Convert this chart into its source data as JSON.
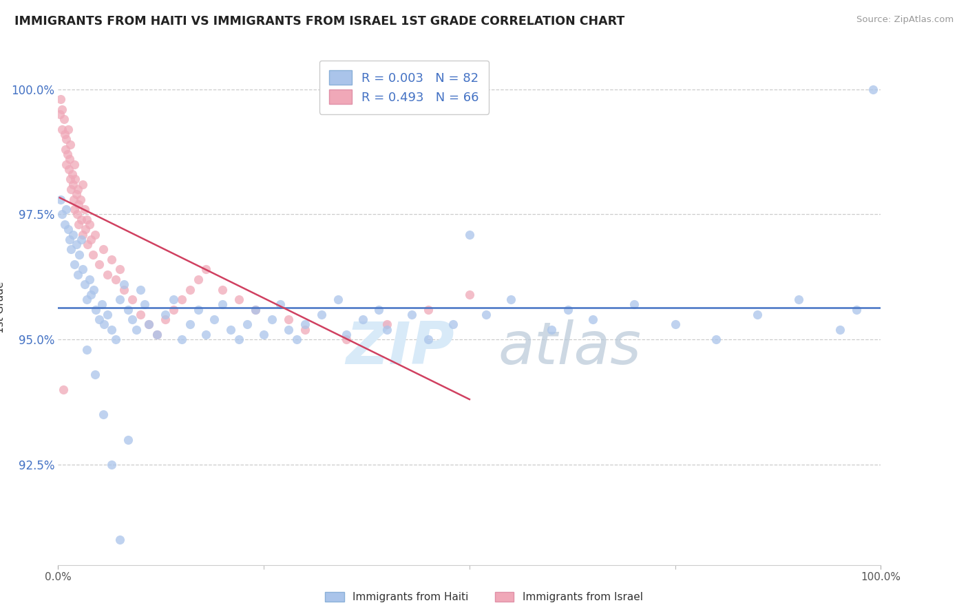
{
  "title": "IMMIGRANTS FROM HAITI VS IMMIGRANTS FROM ISRAEL 1ST GRADE CORRELATION CHART",
  "source": "Source: ZipAtlas.com",
  "ylabel": "1st Grade",
  "y_ticks": [
    92.5,
    95.0,
    97.5,
    100.0
  ],
  "x_min": 0.0,
  "x_max": 100.0,
  "y_min": 90.5,
  "y_max": 100.8,
  "legend1_label": "Immigrants from Haiti",
  "legend2_label": "Immigrants from Israel",
  "legend_R1": "R = 0.003",
  "legend_N1": "N = 82",
  "legend_R2": "R = 0.493",
  "legend_N2": "N = 66",
  "color_haiti": "#aac4ea",
  "color_israel": "#f0a8b8",
  "trendline_haiti_color": "#4472c4",
  "trendline_israel_color": "#d04060",
  "watermark_zip": "ZIP",
  "watermark_atlas": "atlas",
  "background_color": "#ffffff",
  "haiti_x": [
    0.3,
    0.5,
    0.8,
    1.0,
    1.2,
    1.4,
    1.6,
    1.8,
    2.0,
    2.2,
    2.4,
    2.6,
    2.8,
    3.0,
    3.2,
    3.5,
    3.8,
    4.0,
    4.3,
    4.6,
    5.0,
    5.3,
    5.6,
    6.0,
    6.5,
    7.0,
    7.5,
    8.0,
    8.5,
    9.0,
    9.5,
    10.0,
    10.5,
    11.0,
    12.0,
    13.0,
    14.0,
    15.0,
    16.0,
    17.0,
    18.0,
    19.0,
    20.0,
    21.0,
    22.0,
    23.0,
    24.0,
    25.0,
    26.0,
    27.0,
    28.0,
    29.0,
    30.0,
    32.0,
    34.0,
    35.0,
    37.0,
    39.0,
    40.0,
    43.0,
    45.0,
    48.0,
    50.0,
    52.0,
    55.0,
    60.0,
    62.0,
    65.0,
    70.0,
    75.0,
    80.0,
    85.0,
    90.0,
    95.0,
    97.0,
    99.0,
    3.5,
    4.5,
    5.5,
    6.5,
    7.5,
    8.5
  ],
  "haiti_y": [
    97.8,
    97.5,
    97.3,
    97.6,
    97.2,
    97.0,
    96.8,
    97.1,
    96.5,
    96.9,
    96.3,
    96.7,
    97.0,
    96.4,
    96.1,
    95.8,
    96.2,
    95.9,
    96.0,
    95.6,
    95.4,
    95.7,
    95.3,
    95.5,
    95.2,
    95.0,
    95.8,
    96.1,
    95.6,
    95.4,
    95.2,
    96.0,
    95.7,
    95.3,
    95.1,
    95.5,
    95.8,
    95.0,
    95.3,
    95.6,
    95.1,
    95.4,
    95.7,
    95.2,
    95.0,
    95.3,
    95.6,
    95.1,
    95.4,
    95.7,
    95.2,
    95.0,
    95.3,
    95.5,
    95.8,
    95.1,
    95.4,
    95.6,
    95.2,
    95.5,
    95.0,
    95.3,
    97.1,
    95.5,
    95.8,
    95.2,
    95.6,
    95.4,
    95.7,
    95.3,
    95.0,
    95.5,
    95.8,
    95.2,
    95.6,
    100.0,
    94.8,
    94.3,
    93.5,
    92.5,
    91.0,
    93.0
  ],
  "israel_x": [
    0.2,
    0.3,
    0.5,
    0.5,
    0.7,
    0.8,
    0.9,
    1.0,
    1.0,
    1.1,
    1.2,
    1.3,
    1.4,
    1.5,
    1.5,
    1.6,
    1.7,
    1.8,
    1.9,
    2.0,
    2.0,
    2.1,
    2.2,
    2.3,
    2.4,
    2.5,
    2.5,
    2.7,
    2.8,
    3.0,
    3.0,
    3.2,
    3.3,
    3.5,
    3.6,
    3.8,
    4.0,
    4.2,
    4.5,
    5.0,
    5.5,
    6.0,
    6.5,
    7.0,
    7.5,
    8.0,
    9.0,
    10.0,
    11.0,
    12.0,
    13.0,
    14.0,
    15.0,
    16.0,
    17.0,
    18.0,
    20.0,
    22.0,
    24.0,
    28.0,
    30.0,
    35.0,
    40.0,
    45.0,
    50.0,
    0.6
  ],
  "israel_y": [
    99.5,
    99.8,
    99.6,
    99.2,
    99.4,
    99.1,
    98.8,
    99.0,
    98.5,
    98.7,
    99.2,
    98.4,
    98.6,
    98.2,
    98.9,
    98.0,
    98.3,
    98.1,
    97.8,
    98.5,
    97.6,
    98.2,
    97.9,
    97.5,
    98.0,
    97.7,
    97.3,
    97.8,
    97.4,
    98.1,
    97.1,
    97.6,
    97.2,
    97.4,
    96.9,
    97.3,
    97.0,
    96.7,
    97.1,
    96.5,
    96.8,
    96.3,
    96.6,
    96.2,
    96.4,
    96.0,
    95.8,
    95.5,
    95.3,
    95.1,
    95.4,
    95.6,
    95.8,
    96.0,
    96.2,
    96.4,
    96.0,
    95.8,
    95.6,
    95.4,
    95.2,
    95.0,
    95.3,
    95.6,
    95.9,
    94.0
  ]
}
